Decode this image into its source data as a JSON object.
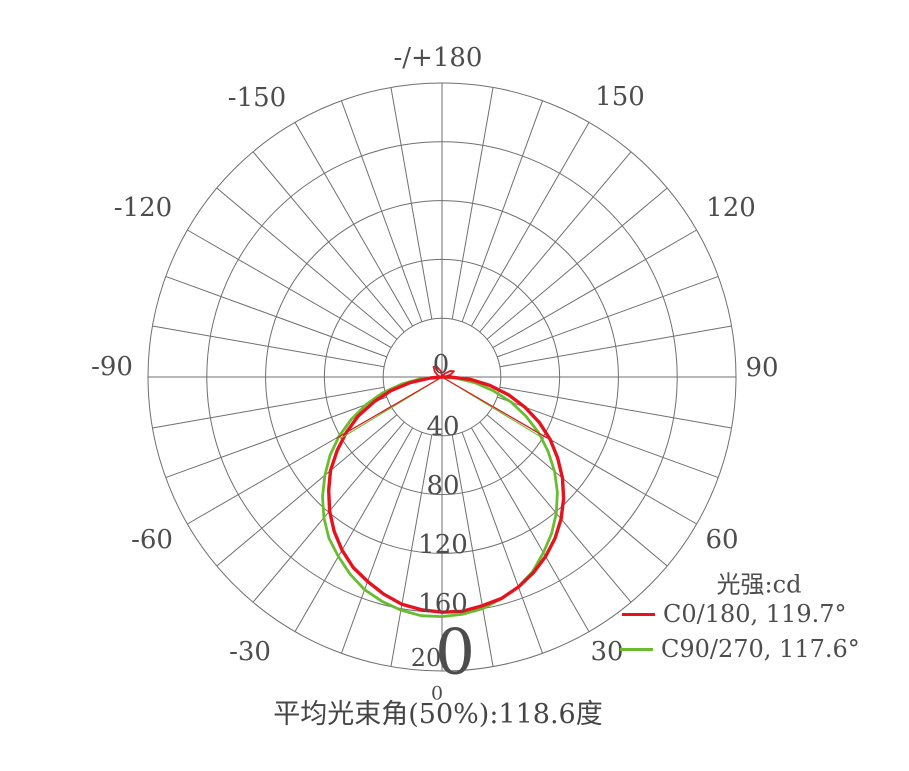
{
  "page_title": "平均光束角(50%):118.6度",
  "legend": {
    "title": "光强:cd",
    "items": [
      {
        "label": "C0/180, 119.7°",
        "color": "#e6131f"
      },
      {
        "label": "C90/270, 117.6°",
        "color": "#69bc30"
      }
    ]
  },
  "polar": {
    "angle_labels": [
      "-/+180",
      "-150",
      "150",
      "-120",
      "120",
      "-90",
      "90",
      "-60",
      "60",
      "-30",
      "30",
      "0"
    ],
    "radial_labels": [
      "0",
      "40",
      "80",
      "120",
      "160"
    ],
    "radial_200": {
      "small": "20",
      "big": "0"
    }
  },
  "colors": {
    "grid": "#6f6f6f",
    "text": "#4d4d4d",
    "c0_180": "#e6131f",
    "c90_270": "#69bc30"
  },
  "chart_data": {
    "type": "line",
    "subtype": "polar-intensity-distribution",
    "title": "光强:cd",
    "units": "cd",
    "caption": "平均光束角(50%):118.6度",
    "average_beam_angle_50pct_deg": 118.6,
    "angle_tick_step_deg": 10,
    "angle_label_step_deg": 30,
    "radial_ticks": [
      0,
      40,
      80,
      120,
      160,
      200
    ],
    "radial_max": 200,
    "series": [
      {
        "name": "C0/180",
        "beam_angle_deg": 119.7,
        "color": "#e6131f",
        "points": [
          [
            -90,
            0
          ],
          [
            -85,
            8
          ],
          [
            -80,
            22
          ],
          [
            -75,
            36
          ],
          [
            -70,
            49
          ],
          [
            -65,
            63
          ],
          [
            -60,
            75
          ],
          [
            -55,
            87
          ],
          [
            -50,
            99
          ],
          [
            -45,
            109
          ],
          [
            -40,
            119
          ],
          [
            -35,
            128
          ],
          [
            -30,
            136
          ],
          [
            -25,
            143
          ],
          [
            -20,
            148
          ],
          [
            -15,
            153
          ],
          [
            -10,
            157
          ],
          [
            -5,
            159
          ],
          [
            0,
            160
          ],
          [
            5,
            160
          ],
          [
            10,
            158
          ],
          [
            15,
            156
          ],
          [
            20,
            152
          ],
          [
            25,
            147
          ],
          [
            30,
            141
          ],
          [
            35,
            134
          ],
          [
            40,
            126
          ],
          [
            45,
            117
          ],
          [
            50,
            107
          ],
          [
            55,
            96
          ],
          [
            60,
            85
          ],
          [
            65,
            73
          ],
          [
            70,
            60
          ],
          [
            75,
            47
          ],
          [
            80,
            33
          ],
          [
            85,
            20
          ],
          [
            90,
            6
          ],
          [
            92,
            0
          ]
        ],
        "back_points": [
          [
            -180,
            1
          ],
          [
            -168,
            4
          ],
          [
            -154,
            8
          ],
          [
            -140,
            9
          ],
          [
            -126,
            6
          ],
          [
            -110,
            3
          ],
          [
            -96,
            1
          ],
          [
            96,
            2
          ],
          [
            106,
            6
          ],
          [
            116,
            9
          ],
          [
            126,
            7
          ],
          [
            140,
            3
          ],
          [
            158,
            1
          ]
        ],
        "half_beam_ray": {
          "angle_deg": 59.85,
          "intensity": 83
        }
      },
      {
        "name": "C90/270",
        "beam_angle_deg": 117.6,
        "color": "#69bc30",
        "points": [
          [
            -91,
            0
          ],
          [
            -85,
            15
          ],
          [
            -80,
            28
          ],
          [
            -75,
            42
          ],
          [
            -70,
            55
          ],
          [
            -65,
            68
          ],
          [
            -60,
            81
          ],
          [
            -55,
            93
          ],
          [
            -50,
            104
          ],
          [
            -45,
            115
          ],
          [
            -40,
            125
          ],
          [
            -35,
            134
          ],
          [
            -30,
            141
          ],
          [
            -25,
            148
          ],
          [
            -20,
            154
          ],
          [
            -15,
            158
          ],
          [
            -10,
            161
          ],
          [
            -5,
            163
          ],
          [
            0,
            163
          ],
          [
            5,
            162
          ],
          [
            10,
            160
          ],
          [
            15,
            156
          ],
          [
            20,
            152
          ],
          [
            25,
            146
          ],
          [
            30,
            138
          ],
          [
            35,
            130
          ],
          [
            40,
            121
          ],
          [
            45,
            111
          ],
          [
            50,
            100
          ],
          [
            55,
            88
          ],
          [
            60,
            76
          ],
          [
            65,
            63
          ],
          [
            70,
            50
          ],
          [
            75,
            36
          ],
          [
            80,
            23
          ],
          [
            85,
            10
          ],
          [
            90,
            0
          ]
        ],
        "half_beam_ray": {
          "angle_deg": 58.8,
          "intensity": 81
        }
      }
    ]
  }
}
